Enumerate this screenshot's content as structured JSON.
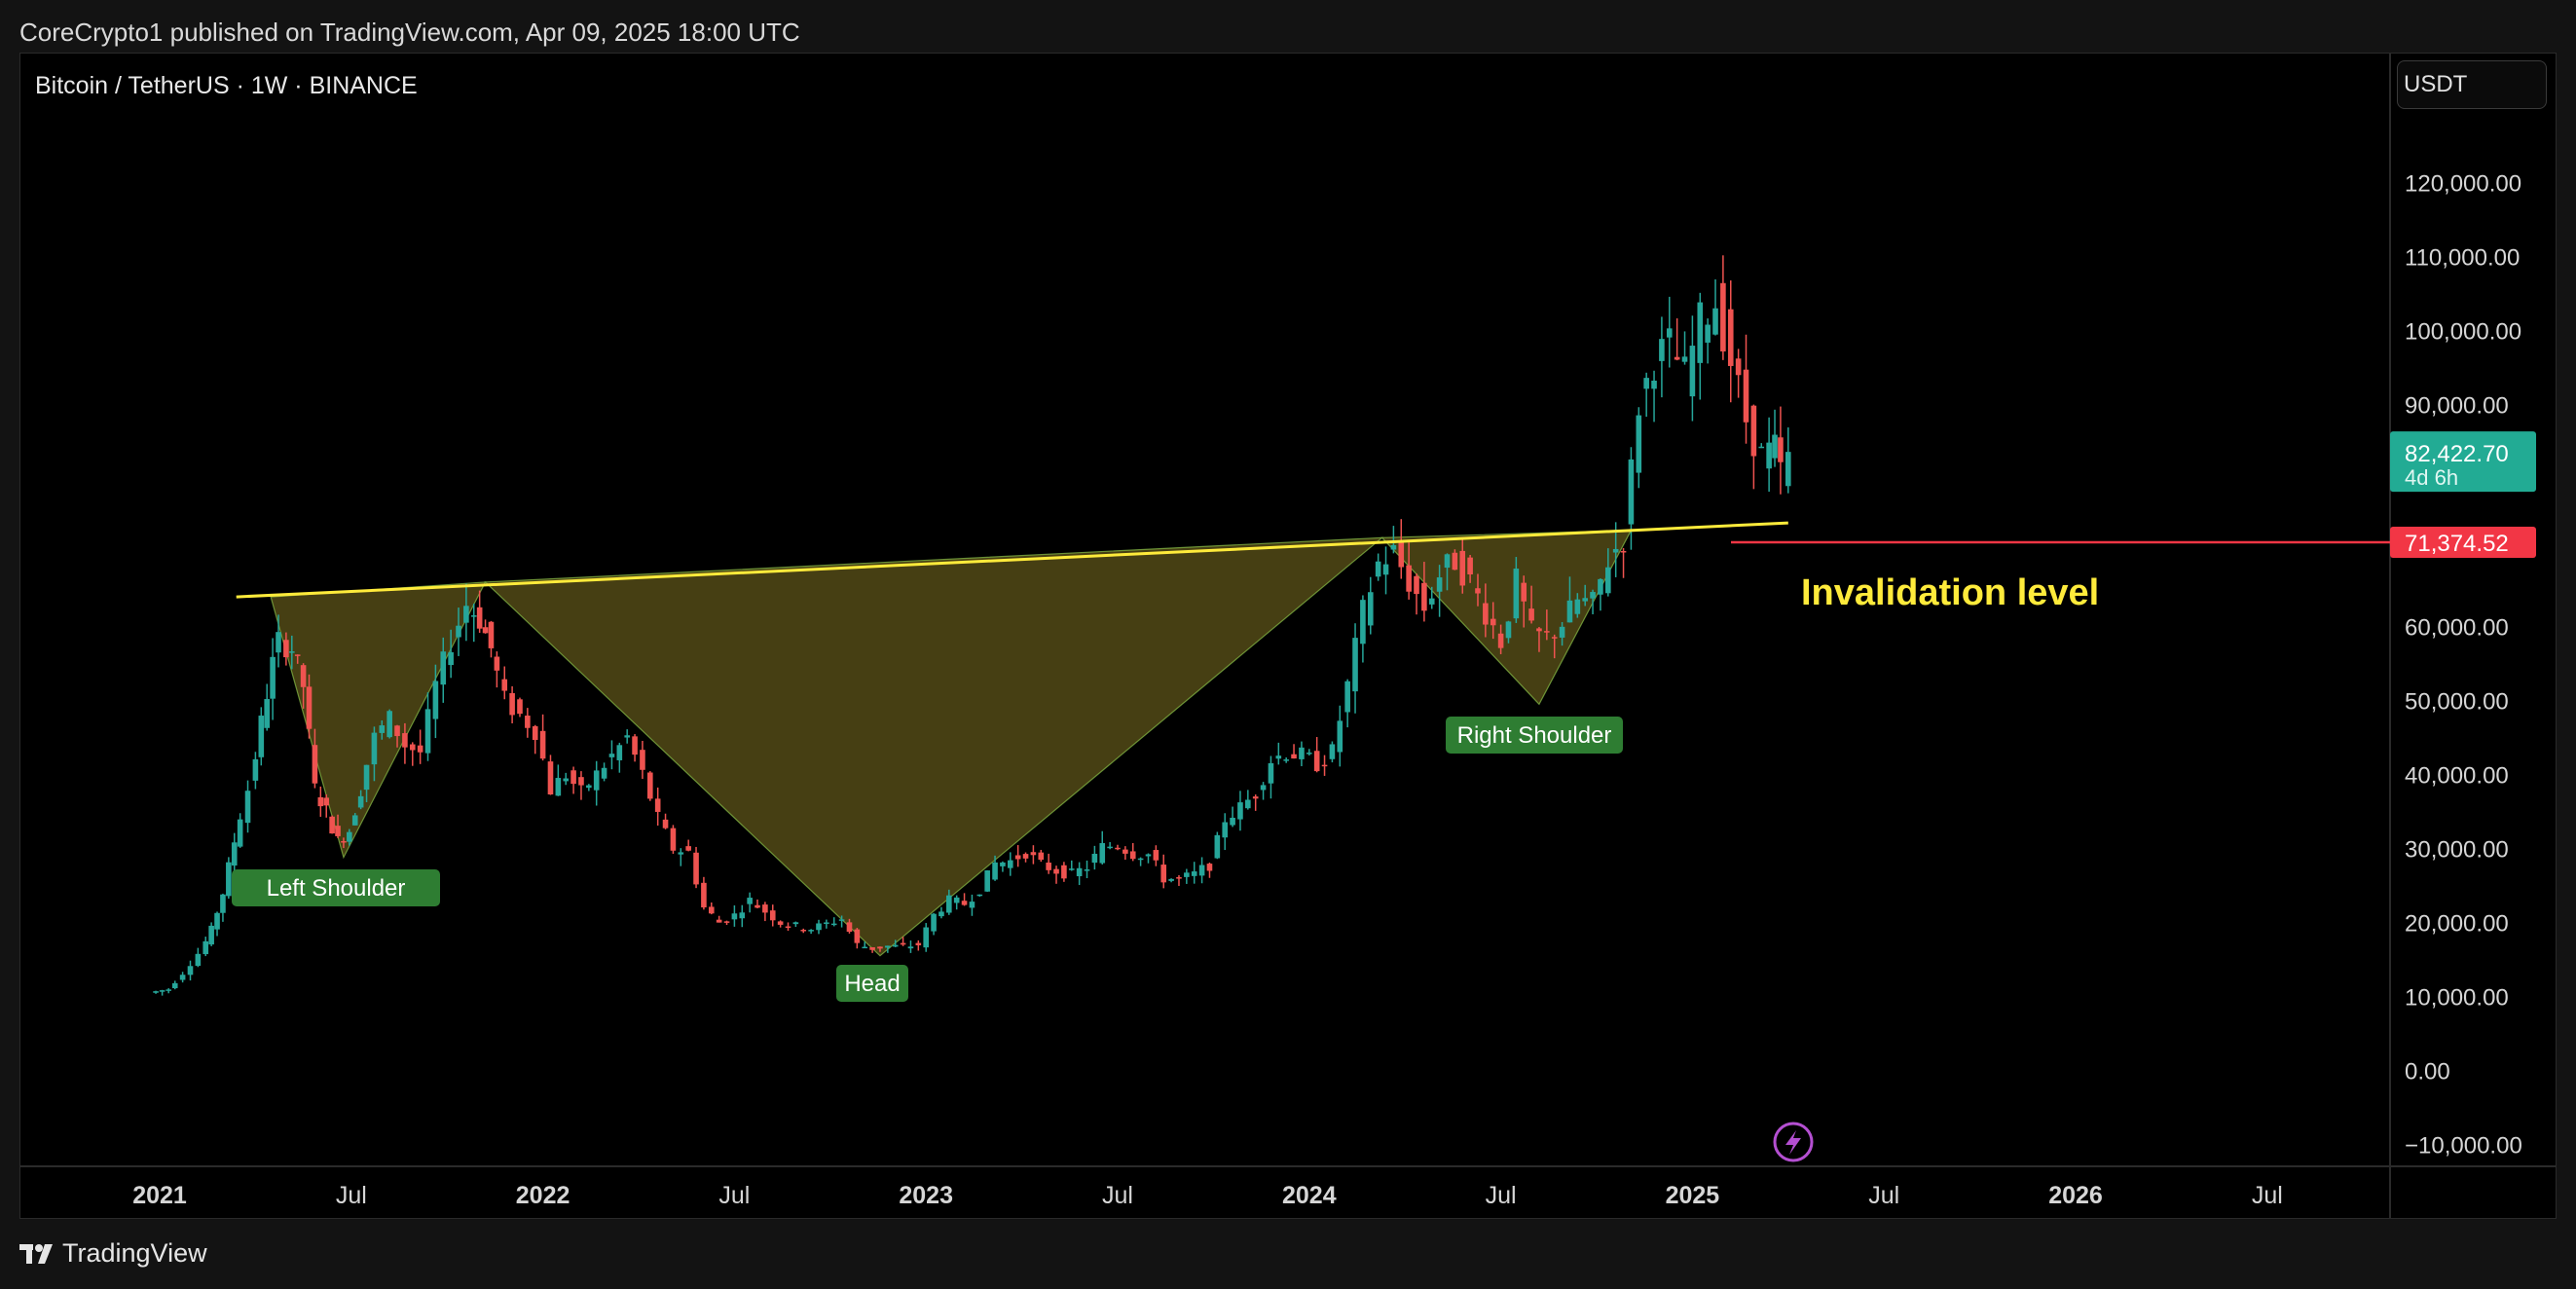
{
  "header": {
    "published": "CoreCrypto1 published on TradingView.com, Apr 09, 2025 18:00 UTC"
  },
  "chart_header": {
    "symbol": "Bitcoin / TetherUS · 1W · BINANCE",
    "currency": "USDT"
  },
  "footer": {
    "brand": "TradingView"
  },
  "colors": {
    "up": "#26a69a",
    "down": "#ef5350",
    "neckline": "#ffeb3b",
    "pattern_fill": "#4a4214",
    "label_bg": "#2e7d32",
    "invalidation": "#f23645",
    "current_price_bg": "#22ab94"
  },
  "chart_data": {
    "type": "candlestick",
    "y_axis": {
      "min": -10000,
      "max": 120000,
      "ticks": [
        "120,000.00",
        "110,000.00",
        "100,000.00",
        "90,000.00",
        "60,000.00",
        "50,000.00",
        "40,000.00",
        "30,000.00",
        "20,000.00",
        "10,000.00",
        "0.00",
        "−10,000.00"
      ]
    },
    "x_axis": {
      "ticks": [
        "2021",
        "Jul",
        "2022",
        "Jul",
        "2023",
        "Jul",
        "2024",
        "Jul",
        "2025",
        "Jul",
        "2026",
        "Jul"
      ]
    },
    "current_price": {
      "value": "82,422.70",
      "countdown": "4d 6h"
    },
    "invalidation_price": "71,374.52",
    "annotations": {
      "left_shoulder": "Left Shoulder",
      "head": "Head",
      "right_shoulder": "Right Shoulder",
      "invalidation": "Invalidation level"
    },
    "pattern": {
      "name": "inverse head and shoulders",
      "neckline": [
        {
          "date": "2021.20",
          "price": 64000
        },
        {
          "date": "2025.25",
          "price": 74000
        }
      ],
      "points": [
        {
          "date": "2021.29",
          "price": 64000
        },
        {
          "date": "2021.48",
          "price": 28800
        },
        {
          "date": "2021.85",
          "price": 66000
        },
        {
          "date": "2022.88",
          "price": 15500
        },
        {
          "date": "2024.19",
          "price": 72000
        },
        {
          "date": "2024.60",
          "price": 49500
        },
        {
          "date": "2024.84",
          "price": 73000
        }
      ]
    },
    "series_anchors": [
      [
        2020.99,
        10500
      ],
      [
        2021.04,
        11000
      ],
      [
        2021.08,
        13200
      ],
      [
        2021.12,
        15800
      ],
      [
        2021.15,
        19000
      ],
      [
        2021.18,
        24000
      ],
      [
        2021.21,
        31000
      ],
      [
        2021.25,
        38000
      ],
      [
        2021.28,
        47000
      ],
      [
        2021.31,
        55000
      ],
      [
        2021.33,
        58000
      ],
      [
        2021.36,
        57000
      ],
      [
        2021.39,
        52000
      ],
      [
        2021.42,
        38000
      ],
      [
        2021.45,
        35000
      ],
      [
        2021.48,
        31000
      ],
      [
        2021.51,
        32500
      ],
      [
        2021.54,
        38000
      ],
      [
        2021.58,
        45000
      ],
      [
        2021.62,
        47500
      ],
      [
        2021.66,
        44000
      ],
      [
        2021.7,
        43000
      ],
      [
        2021.74,
        52000
      ],
      [
        2021.78,
        58000
      ],
      [
        2021.82,
        63000
      ],
      [
        2021.85,
        61000
      ],
      [
        2021.88,
        57000
      ],
      [
        2021.92,
        50000
      ],
      [
        2021.96,
        48000
      ],
      [
        2022.0,
        46000
      ],
      [
        2022.04,
        38000
      ],
      [
        2022.08,
        40000
      ],
      [
        2022.12,
        37500
      ],
      [
        2022.16,
        40000
      ],
      [
        2022.2,
        42500
      ],
      [
        2022.24,
        45000
      ],
      [
        2022.28,
        40000
      ],
      [
        2022.32,
        34000
      ],
      [
        2022.36,
        30000
      ],
      [
        2022.4,
        29500
      ],
      [
        2022.44,
        22000
      ],
      [
        2022.48,
        20000
      ],
      [
        2022.52,
        21000
      ],
      [
        2022.56,
        23000
      ],
      [
        2022.6,
        21500
      ],
      [
        2022.64,
        20000
      ],
      [
        2022.68,
        19500
      ],
      [
        2022.72,
        19200
      ],
      [
        2022.76,
        19800
      ],
      [
        2022.8,
        20500
      ],
      [
        2022.84,
        17000
      ],
      [
        2022.88,
        16500
      ],
      [
        2022.92,
        16800
      ],
      [
        2022.96,
        16700
      ],
      [
        2023.0,
        17000
      ],
      [
        2023.04,
        21000
      ],
      [
        2023.08,
        23000
      ],
      [
        2023.12,
        22500
      ],
      [
        2023.16,
        24500
      ],
      [
        2023.2,
        28000
      ],
      [
        2023.24,
        28300
      ],
      [
        2023.28,
        29500
      ],
      [
        2023.32,
        27800
      ],
      [
        2023.36,
        27000
      ],
      [
        2023.4,
        26500
      ],
      [
        2023.44,
        27500
      ],
      [
        2023.48,
        30200
      ],
      [
        2023.52,
        30500
      ],
      [
        2023.56,
        29300
      ],
      [
        2023.6,
        29200
      ],
      [
        2023.64,
        26000
      ],
      [
        2023.68,
        25800
      ],
      [
        2023.72,
        26500
      ],
      [
        2023.76,
        27800
      ],
      [
        2023.8,
        34000
      ],
      [
        2023.84,
        35500
      ],
      [
        2023.88,
        37500
      ],
      [
        2023.92,
        42000
      ],
      [
        2023.96,
        43000
      ],
      [
        2024.0,
        42500
      ],
      [
        2024.04,
        41500
      ],
      [
        2024.08,
        43000
      ],
      [
        2024.12,
        52000
      ],
      [
        2024.16,
        62000
      ],
      [
        2024.2,
        68500
      ],
      [
        2024.24,
        70000
      ],
      [
        2024.28,
        66000
      ],
      [
        2024.32,
        62500
      ],
      [
        2024.36,
        67000
      ],
      [
        2024.4,
        69000
      ],
      [
        2024.44,
        66000
      ],
      [
        2024.48,
        62000
      ],
      [
        2024.52,
        58000
      ],
      [
        2024.56,
        66000
      ],
      [
        2024.6,
        59000
      ],
      [
        2024.64,
        58500
      ],
      [
        2024.68,
        60500
      ],
      [
        2024.72,
        63500
      ],
      [
        2024.76,
        63000
      ],
      [
        2024.8,
        69000
      ],
      [
        2024.84,
        72000
      ],
      [
        2024.88,
        90000
      ],
      [
        2024.92,
        96000
      ],
      [
        2024.96,
        98000
      ],
      [
        2025.0,
        94000
      ],
      [
        2025.04,
        101000
      ],
      [
        2025.08,
        104000
      ],
      [
        2025.12,
        96000
      ],
      [
        2025.16,
        88000
      ],
      [
        2025.2,
        83000
      ],
      [
        2025.23,
        84000
      ],
      [
        2025.25,
        81000
      ],
      [
        2025.27,
        82400
      ]
    ]
  }
}
